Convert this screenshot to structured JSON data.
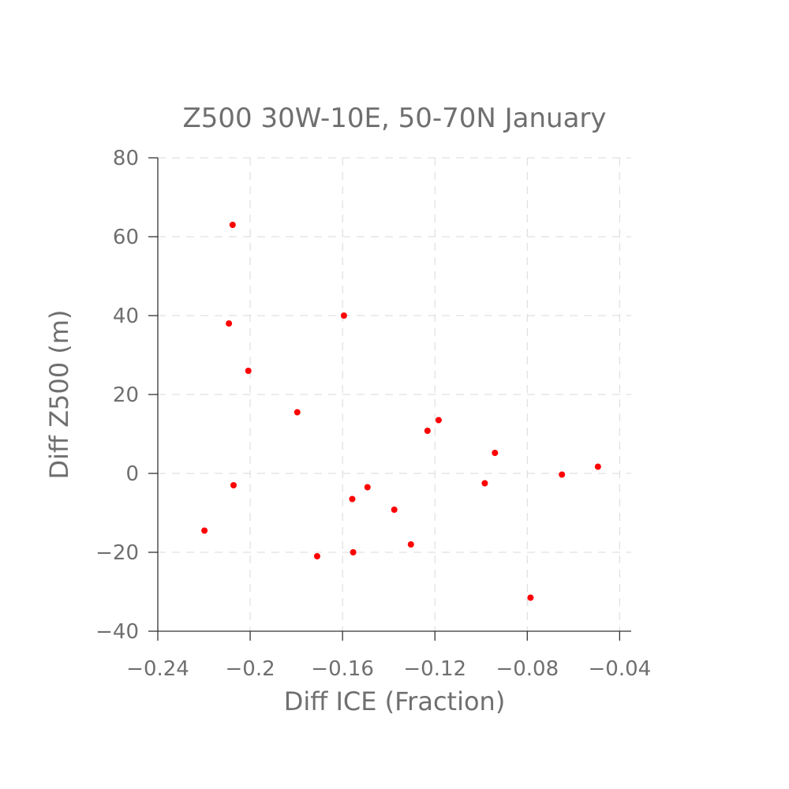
{
  "chart_data": {
    "type": "scatter",
    "title": "Z500 30W-10E, 50-70N January",
    "xlabel": "Diff ICE (Fraction)",
    "ylabel": "Diff Z500 (m)",
    "xlim": [
      -0.24,
      -0.035
    ],
    "ylim": [
      -40,
      80
    ],
    "xticks": [
      -0.24,
      -0.2,
      -0.16,
      -0.12,
      -0.08,
      -0.04
    ],
    "xtick_labels": [
      "−0.24",
      "−0.2",
      "−0.16",
      "−0.12",
      "−0.08",
      "−0.04"
    ],
    "yticks": [
      -40,
      -20,
      0,
      20,
      40,
      60,
      80
    ],
    "ytick_labels": [
      "−40",
      "−20",
      "0",
      "20",
      "40",
      "60",
      "80"
    ],
    "grid": true,
    "marker_color": "#ff0000",
    "points": [
      {
        "x": -0.2076,
        "y": 63.0
      },
      {
        "x": -0.2092,
        "y": 38.0
      },
      {
        "x": -0.2008,
        "y": 26.0
      },
      {
        "x": -0.1796,
        "y": 15.5
      },
      {
        "x": -0.1594,
        "y": 40.0
      },
      {
        "x": -0.2072,
        "y": -3.0
      },
      {
        "x": -0.2198,
        "y": -14.5
      },
      {
        "x": -0.171,
        "y": -21.0
      },
      {
        "x": -0.1558,
        "y": -6.5
      },
      {
        "x": -0.1554,
        "y": -20.0
      },
      {
        "x": -0.1492,
        "y": -3.5
      },
      {
        "x": -0.1376,
        "y": -9.2
      },
      {
        "x": -0.1304,
        "y": -18.0
      },
      {
        "x": -0.1232,
        "y": 10.8
      },
      {
        "x": -0.1184,
        "y": 13.5
      },
      {
        "x": -0.0984,
        "y": -2.5
      },
      {
        "x": -0.094,
        "y": 5.2
      },
      {
        "x": -0.0786,
        "y": -31.5
      },
      {
        "x": -0.065,
        "y": -0.3
      },
      {
        "x": -0.0494,
        "y": 1.7
      }
    ]
  }
}
